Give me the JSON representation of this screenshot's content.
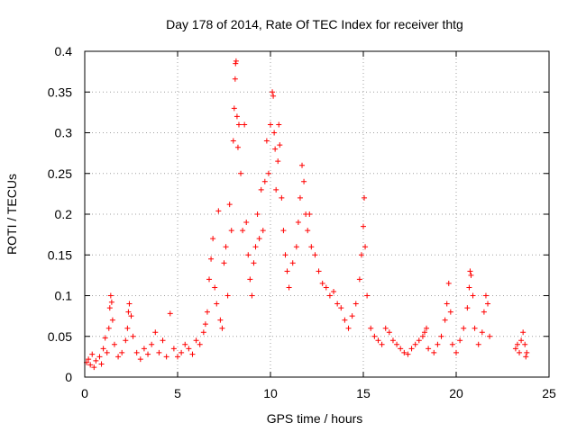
{
  "chart_data": {
    "type": "scatter",
    "title": "Day 178 of 2014, Rate Of TEC Index for receiver thtg",
    "xlabel": "GPS time / hours",
    "ylabel": "ROTI / TECUs",
    "xlim": [
      0,
      25
    ],
    "ylim": [
      0,
      0.4
    ],
    "xticks": [
      0,
      5,
      10,
      15,
      20,
      25
    ],
    "xtick_labels": [
      "0",
      "5",
      "10",
      "15",
      "20",
      "25"
    ],
    "yticks": [
      0,
      0.05,
      0.1,
      0.15,
      0.2,
      0.25,
      0.3,
      0.35,
      0.4
    ],
    "ytick_labels": [
      "0",
      "0.05",
      "0.1",
      "0.15",
      "0.2",
      "0.25",
      "0.3",
      "0.35",
      "0.4"
    ],
    "grid": true,
    "marker": "+",
    "color": "#ff0000",
    "series": [
      {
        "name": "ROTI",
        "points": [
          [
            0.1,
            0.018
          ],
          [
            0.2,
            0.022
          ],
          [
            0.3,
            0.015
          ],
          [
            0.4,
            0.028
          ],
          [
            0.5,
            0.012
          ],
          [
            0.6,
            0.02
          ],
          [
            0.8,
            0.025
          ],
          [
            0.9,
            0.016
          ],
          [
            1.0,
            0.035
          ],
          [
            1.1,
            0.048
          ],
          [
            1.2,
            0.03
          ],
          [
            1.3,
            0.06
          ],
          [
            1.35,
            0.085
          ],
          [
            1.4,
            0.1
          ],
          [
            1.45,
            0.092
          ],
          [
            1.5,
            0.07
          ],
          [
            1.6,
            0.04
          ],
          [
            1.8,
            0.025
          ],
          [
            2.0,
            0.03
          ],
          [
            2.2,
            0.045
          ],
          [
            2.3,
            0.06
          ],
          [
            2.35,
            0.08
          ],
          [
            2.4,
            0.09
          ],
          [
            2.5,
            0.075
          ],
          [
            2.6,
            0.05
          ],
          [
            2.8,
            0.03
          ],
          [
            3.0,
            0.022
          ],
          [
            3.2,
            0.035
          ],
          [
            3.4,
            0.028
          ],
          [
            3.6,
            0.04
          ],
          [
            3.8,
            0.055
          ],
          [
            4.0,
            0.03
          ],
          [
            4.2,
            0.045
          ],
          [
            4.4,
            0.025
          ],
          [
            4.6,
            0.078
          ],
          [
            4.8,
            0.035
          ],
          [
            5.0,
            0.025
          ],
          [
            5.2,
            0.03
          ],
          [
            5.4,
            0.04
          ],
          [
            5.6,
            0.035
          ],
          [
            5.8,
            0.028
          ],
          [
            6.0,
            0.045
          ],
          [
            6.2,
            0.04
          ],
          [
            6.4,
            0.055
          ],
          [
            6.5,
            0.065
          ],
          [
            6.6,
            0.08
          ],
          [
            6.7,
            0.12
          ],
          [
            6.8,
            0.145
          ],
          [
            6.9,
            0.17
          ],
          [
            7.0,
            0.11
          ],
          [
            7.1,
            0.09
          ],
          [
            7.2,
            0.204
          ],
          [
            7.3,
            0.07
          ],
          [
            7.4,
            0.06
          ],
          [
            7.5,
            0.14
          ],
          [
            7.6,
            0.16
          ],
          [
            7.7,
            0.1
          ],
          [
            7.8,
            0.212
          ],
          [
            7.9,
            0.18
          ],
          [
            8.0,
            0.29
          ],
          [
            8.05,
            0.33
          ],
          [
            8.1,
            0.366
          ],
          [
            8.12,
            0.385
          ],
          [
            8.15,
            0.388
          ],
          [
            8.2,
            0.32
          ],
          [
            8.25,
            0.282
          ],
          [
            8.3,
            0.31
          ],
          [
            8.4,
            0.25
          ],
          [
            8.5,
            0.18
          ],
          [
            8.6,
            0.31
          ],
          [
            8.7,
            0.19
          ],
          [
            8.8,
            0.15
          ],
          [
            8.9,
            0.12
          ],
          [
            9.0,
            0.1
          ],
          [
            9.1,
            0.14
          ],
          [
            9.2,
            0.16
          ],
          [
            9.3,
            0.2
          ],
          [
            9.4,
            0.17
          ],
          [
            9.5,
            0.23
          ],
          [
            9.6,
            0.18
          ],
          [
            9.7,
            0.24
          ],
          [
            9.8,
            0.29
          ],
          [
            9.9,
            0.25
          ],
          [
            10.0,
            0.31
          ],
          [
            10.1,
            0.35
          ],
          [
            10.15,
            0.345
          ],
          [
            10.2,
            0.3
          ],
          [
            10.25,
            0.28
          ],
          [
            10.3,
            0.23
          ],
          [
            10.4,
            0.265
          ],
          [
            10.45,
            0.31
          ],
          [
            10.5,
            0.285
          ],
          [
            10.6,
            0.22
          ],
          [
            10.7,
            0.18
          ],
          [
            10.8,
            0.15
          ],
          [
            10.9,
            0.13
          ],
          [
            11.0,
            0.11
          ],
          [
            11.2,
            0.14
          ],
          [
            11.4,
            0.16
          ],
          [
            11.5,
            0.19
          ],
          [
            11.6,
            0.22
          ],
          [
            11.7,
            0.26
          ],
          [
            11.8,
            0.24
          ],
          [
            11.9,
            0.2
          ],
          [
            12.0,
            0.18
          ],
          [
            12.1,
            0.2
          ],
          [
            12.2,
            0.16
          ],
          [
            12.4,
            0.15
          ],
          [
            12.6,
            0.13
          ],
          [
            12.8,
            0.115
          ],
          [
            13.0,
            0.11
          ],
          [
            13.2,
            0.1
          ],
          [
            13.4,
            0.105
          ],
          [
            13.6,
            0.09
          ],
          [
            13.8,
            0.085
          ],
          [
            14.0,
            0.07
          ],
          [
            14.2,
            0.06
          ],
          [
            14.4,
            0.075
          ],
          [
            14.6,
            0.09
          ],
          [
            14.8,
            0.12
          ],
          [
            14.9,
            0.15
          ],
          [
            15.0,
            0.185
          ],
          [
            15.05,
            0.22
          ],
          [
            15.1,
            0.16
          ],
          [
            15.2,
            0.1
          ],
          [
            15.4,
            0.06
          ],
          [
            15.6,
            0.05
          ],
          [
            15.8,
            0.045
          ],
          [
            16.0,
            0.04
          ],
          [
            16.2,
            0.06
          ],
          [
            16.4,
            0.055
          ],
          [
            16.6,
            0.045
          ],
          [
            16.8,
            0.04
          ],
          [
            17.0,
            0.035
          ],
          [
            17.2,
            0.03
          ],
          [
            17.4,
            0.028
          ],
          [
            17.6,
            0.035
          ],
          [
            17.8,
            0.04
          ],
          [
            18.0,
            0.045
          ],
          [
            18.2,
            0.05
          ],
          [
            18.3,
            0.055
          ],
          [
            18.4,
            0.06
          ],
          [
            18.5,
            0.035
          ],
          [
            18.8,
            0.03
          ],
          [
            19.0,
            0.04
          ],
          [
            19.2,
            0.05
          ],
          [
            19.4,
            0.07
          ],
          [
            19.5,
            0.09
          ],
          [
            19.6,
            0.115
          ],
          [
            19.7,
            0.08
          ],
          [
            19.8,
            0.04
          ],
          [
            20.0,
            0.03
          ],
          [
            20.2,
            0.045
          ],
          [
            20.4,
            0.06
          ],
          [
            20.6,
            0.085
          ],
          [
            20.7,
            0.11
          ],
          [
            20.75,
            0.13
          ],
          [
            20.8,
            0.125
          ],
          [
            20.9,
            0.1
          ],
          [
            21.0,
            0.06
          ],
          [
            21.2,
            0.04
          ],
          [
            21.4,
            0.055
          ],
          [
            21.5,
            0.08
          ],
          [
            21.6,
            0.1
          ],
          [
            21.7,
            0.09
          ],
          [
            21.8,
            0.05
          ],
          [
            23.2,
            0.035
          ],
          [
            23.3,
            0.04
          ],
          [
            23.4,
            0.03
          ],
          [
            23.5,
            0.045
          ],
          [
            23.6,
            0.055
          ],
          [
            23.7,
            0.04
          ],
          [
            23.75,
            0.025
          ],
          [
            23.8,
            0.03
          ]
        ]
      }
    ]
  }
}
